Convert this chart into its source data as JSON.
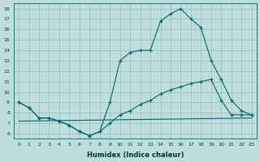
{
  "xlabel": "Humidex (Indice chaleur)",
  "bg_color": "#bedddd",
  "grid_color": "#99bbbb",
  "line_color": "#006666",
  "xlim": [
    -0.5,
    23.5
  ],
  "ylim": [
    5.5,
    18.5
  ],
  "xticks": [
    0,
    1,
    2,
    3,
    4,
    5,
    6,
    7,
    8,
    9,
    10,
    11,
    12,
    13,
    14,
    15,
    16,
    17,
    18,
    19,
    20,
    21,
    22,
    23
  ],
  "yticks": [
    6,
    7,
    8,
    9,
    10,
    11,
    12,
    13,
    14,
    15,
    16,
    17,
    18
  ],
  "series1_x": [
    0,
    1,
    2,
    3,
    4,
    5,
    6,
    7,
    8,
    9,
    10,
    11,
    12,
    13,
    14,
    15,
    16,
    17,
    18,
    19,
    20,
    21,
    22,
    23
  ],
  "series1_y": [
    9.0,
    8.5,
    7.5,
    7.5,
    7.2,
    6.8,
    6.2,
    5.8,
    6.2,
    9.0,
    13.0,
    13.8,
    14.0,
    14.0,
    16.8,
    17.5,
    18.0,
    17.0,
    16.2,
    13.0,
    11.2,
    9.2,
    8.2,
    7.8
  ],
  "series2_x": [
    0,
    1,
    2,
    3,
    4,
    5,
    6,
    7,
    8,
    9,
    10,
    11,
    12,
    13,
    14,
    15,
    16,
    17,
    18,
    19,
    20,
    21,
    22,
    23
  ],
  "series2_y": [
    9.0,
    8.5,
    7.5,
    7.5,
    7.2,
    6.8,
    6.2,
    5.8,
    6.2,
    7.0,
    7.8,
    8.2,
    8.8,
    9.2,
    9.8,
    10.2,
    10.5,
    10.8,
    11.0,
    11.2,
    9.2,
    7.8,
    7.8,
    7.8
  ],
  "series3_x": [
    0,
    23
  ],
  "series3_y": [
    7.2,
    7.5
  ]
}
